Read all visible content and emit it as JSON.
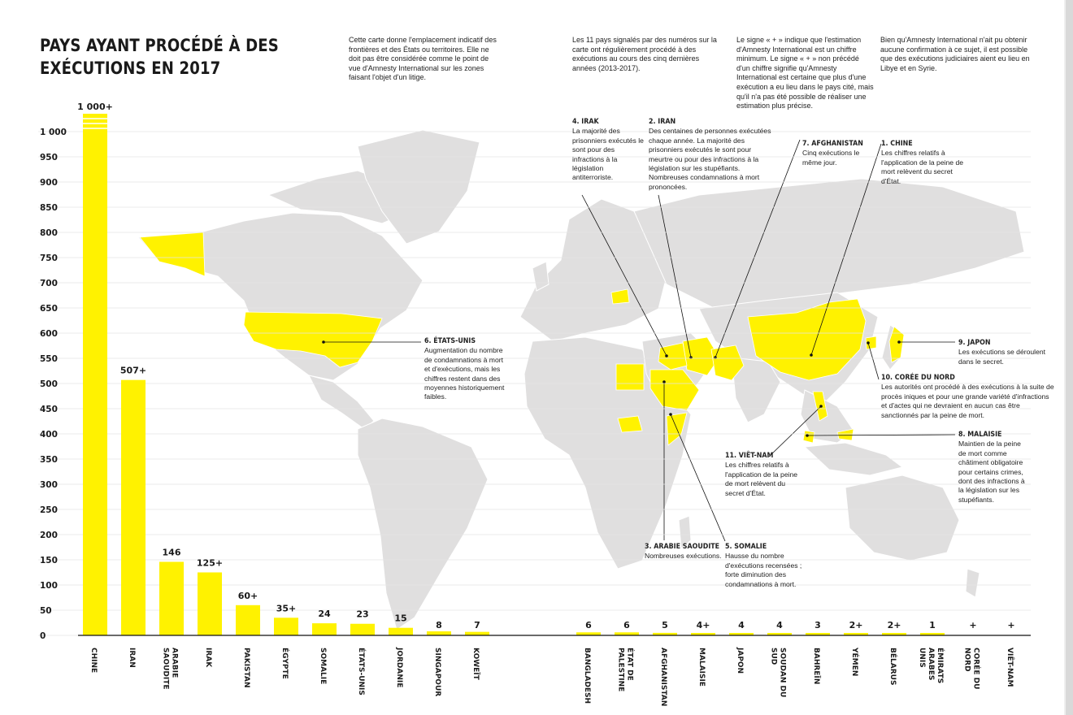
{
  "title": "PAYS AYANT PROCÉDÉ À DES\nEXÉCUTIONS EN 2017",
  "intro_texts": [
    "Cette carte donne l'emplacement indicatif des frontières et des États ou territoires. Elle ne doit pas être considérée comme le point de vue d'Amnesty International sur les zones faisant l'objet d'un litige.",
    "Les 11 pays signalés par des numéros sur la carte ont régulièrement procédé à des exécutions au cours des cinq dernières années (2013-2017).",
    "Le signe « + » indique que l'estimation d'Amnesty International est un chiffre minimum. Le signe « + » non précédé d'un chiffre signifie qu'Amnesty International est certaine que plus d'une exécution a eu lieu dans le pays cité, mais qu'il n'a pas été possible de réaliser une estimation plus précise.",
    "Bien qu'Amnesty International n'ait pu obtenir aucune confirmation à ce sujet, il est possible que des exécutions judiciaires aient eu lieu en Libye et en Syrie."
  ],
  "callouts": [
    {
      "heading": "1. CHINE",
      "text": "Les chiffres relatifs à l'application de la peine de mort relèvent du secret d'État."
    },
    {
      "heading": "2. IRAN",
      "text": "Des centaines de personnes exécutées chaque année. La majorité des prisonniers exécutés le sont pour meurtre ou pour des infractions à la législation sur les stupéfiants. Nombreuses condamnations à mort prononcées."
    },
    {
      "heading": "3. ARABIE SAOUDITE",
      "text": "Nombreuses exécutions."
    },
    {
      "heading": "4. IRAK",
      "text": "La majorité des prisonniers exécutés le sont pour des infractions à la législation antiterroriste."
    },
    {
      "heading": "5. SOMALIE",
      "text": "Hausse du nombre d'exécutions recensées ; forte diminution des condamnations à mort."
    },
    {
      "heading": "6. ÉTATS-UNIS",
      "text": "Augmentation du nombre de condamnations à mort et d'exécutions, mais les chiffres restent dans des moyennes historiquement faibles."
    },
    {
      "heading": "7. AFGHANISTAN",
      "text": "Cinq exécutions le même jour."
    },
    {
      "heading": "8. MALAISIE",
      "text": "Maintien de la peine de mort comme châtiment obligatoire pour certains crimes, dont des infractions à la législation sur les stupéfiants."
    },
    {
      "heading": "9. JAPON",
      "text": "Les exécutions se déroulent dans le secret."
    },
    {
      "heading": "10. CORÉE DU NORD",
      "text": "Les autorités ont procédé à des exécutions à la suite de procès iniques et pour une grande variété d'infractions et d'actes qui ne devraient en aucun cas être sanctionnés par la peine de mort."
    },
    {
      "heading": "11. VIÊT-NAM",
      "text": "Les chiffres relatifs à l'application de la peine de mort relèvent du secret d'État."
    }
  ],
  "colors": {
    "bar": "#fff200",
    "land": "#e0dfdf",
    "highlight": "#fff200",
    "border": "#ffffff",
    "text": "#1a1a1a",
    "grid": "#e4e4e4"
  },
  "chart_data": {
    "type": "bar",
    "y_ticks": [
      0,
      50,
      100,
      150,
      200,
      250,
      300,
      350,
      400,
      450,
      500,
      550,
      600,
      650,
      700,
      750,
      800,
      850,
      900,
      950,
      1000
    ],
    "ylim": [
      0,
      1000
    ],
    "grid": true,
    "categories": [
      "CHINE",
      "IRAN",
      "ARABIE SAOUDITE",
      "IRAK",
      "PAKISTAN",
      "ÉGYPTE",
      "SOMALIE",
      "ÉTATS-UNIS",
      "JORDANIE",
      "SINGAPOUR",
      "KOWEÏT",
      "BANGLADESH",
      "ÉTAT DE PALESTINE",
      "AFGHANISTAN",
      "MALAISIE",
      "JAPON",
      "SOUDAN DU SUD",
      "BAHREÏN",
      "YÉMEN",
      "BÉLARUS",
      "ÉMIRATS ARABES UNIS",
      "CORÉE DU NORD",
      "VIÊT-NAM"
    ],
    "values": [
      1000,
      507,
      146,
      125,
      60,
      35,
      24,
      23,
      15,
      8,
      7,
      6,
      6,
      5,
      4,
      4,
      4,
      3,
      2,
      2,
      1,
      null,
      null
    ],
    "value_labels": [
      "1 000+",
      "507+",
      "146",
      "125+",
      "60+",
      "35+",
      "24",
      "23",
      "15",
      "8",
      "7",
      "6",
      "6",
      "5",
      "4+",
      "4",
      "4",
      "3",
      "2+",
      "2+",
      "1",
      "+",
      "+"
    ],
    "highlighted_countries": [
      "CHINE",
      "IRAN",
      "ARABIE SAOUDITE",
      "IRAK",
      "PAKISTAN",
      "ÉGYPTE",
      "SOMALIE",
      "ÉTATS-UNIS",
      "JORDANIE",
      "SINGAPOUR",
      "KOWEÏT",
      "BANGLADESH",
      "ÉTAT DE PALESTINE",
      "AFGHANISTAN",
      "MALAISIE",
      "JAPON",
      "SOUDAN DU SUD",
      "BAHREÏN",
      "YÉMEN",
      "BÉLARUS",
      "ÉMIRATS ARABES UNIS",
      "CORÉE DU NORD",
      "VIÊT-NAM"
    ]
  }
}
